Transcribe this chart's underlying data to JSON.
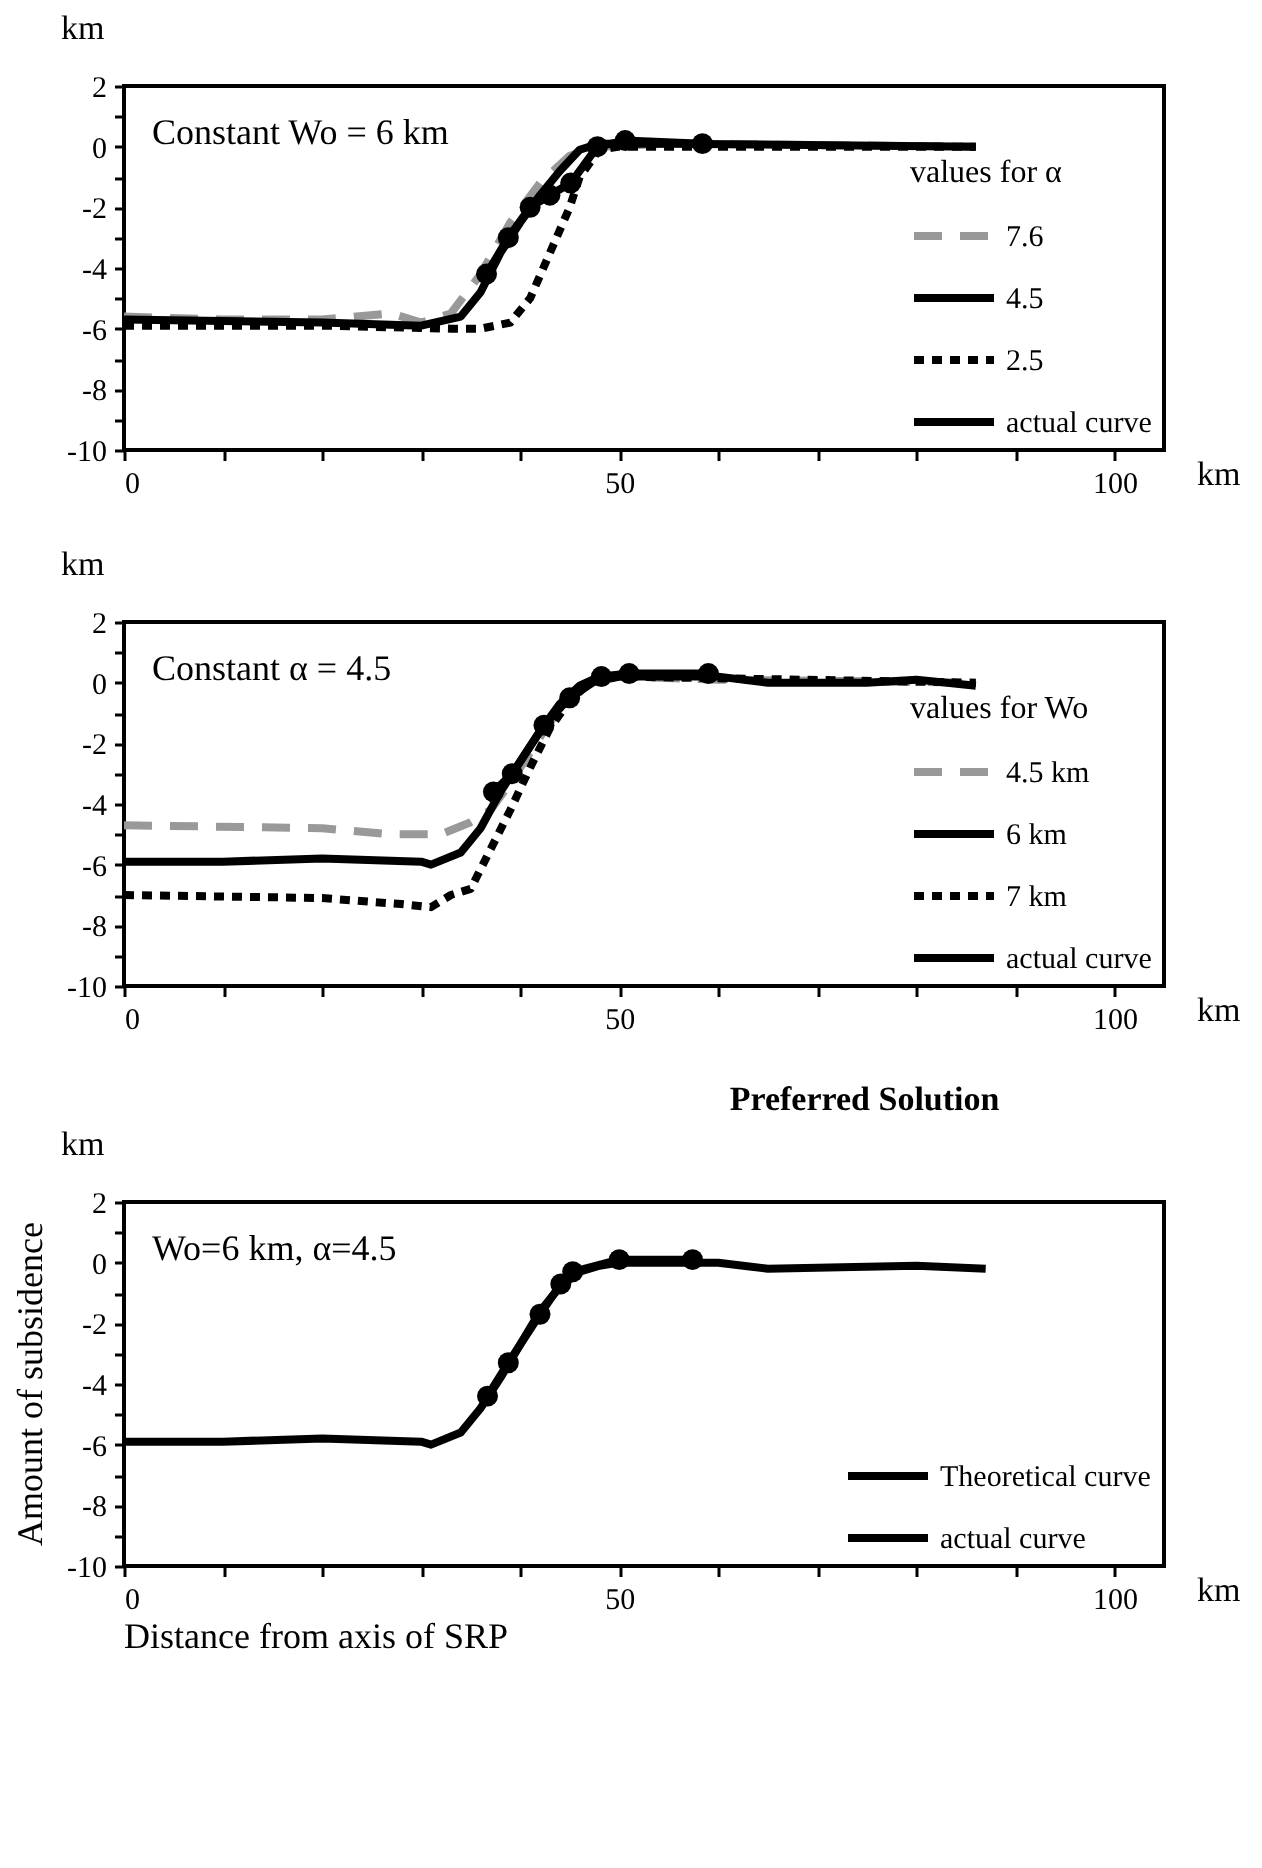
{
  "chart_data": [
    {
      "type": "line",
      "xlabel": "km",
      "ylabel": "km",
      "legend_title": "values for α",
      "legend": "bottom right",
      "grid": false,
      "annotations": [
        "Constant Wo = 6 km"
      ],
      "xlim": [
        0,
        105
      ],
      "xticks": [
        0,
        {
          "value": 10,
          "label": null
        },
        {
          "value": 20,
          "label": null
        },
        {
          "value": 30,
          "label": null
        },
        {
          "value": 40,
          "label": null
        },
        50,
        {
          "value": 60,
          "label": null
        },
        {
          "value": 70,
          "label": null
        },
        {
          "value": 80,
          "label": null
        },
        {
          "value": 90,
          "label": null
        },
        100
      ],
      "ylim": [
        -10,
        2
      ],
      "yticks": [
        -10,
        {
          "value": -9,
          "label": null
        },
        -8,
        {
          "value": -7,
          "label": null
        },
        -6,
        {
          "value": -5,
          "label": null
        },
        -4,
        {
          "value": -3,
          "label": null
        },
        -2,
        {
          "value": -1,
          "label": null
        },
        0,
        {
          "value": 1,
          "label": null
        },
        2
      ],
      "series": [
        {
          "name": "7.6",
          "color": "#999999",
          "line_style": "dashed",
          "marker": "none",
          "x": [
            0,
            10,
            20,
            27,
            30,
            33,
            36,
            39,
            42,
            45,
            48,
            55,
            86
          ],
          "values": [
            -5.6,
            -5.7,
            -5.7,
            -5.5,
            -5.8,
            -5.5,
            -4.2,
            -2.5,
            -1.2,
            -0.3,
            0,
            0.1,
            0
          ]
        },
        {
          "name": "4.5",
          "color": "#000000",
          "line_style": "solid",
          "marker": "none",
          "x": [
            0,
            20,
            30,
            34,
            36,
            38,
            40,
            42,
            44,
            46,
            48,
            55,
            86
          ],
          "values": [
            -5.7,
            -5.8,
            -5.9,
            -5.6,
            -4.8,
            -3.5,
            -2.5,
            -1.6,
            -0.8,
            -0.1,
            0.1,
            0.1,
            0
          ]
        },
        {
          "name": "2.5",
          "color": "#000000",
          "line_style": "dotted",
          "marker": "none",
          "x": [
            0,
            20,
            33,
            36,
            39,
            41,
            43,
            45,
            46,
            48,
            50,
            86
          ],
          "values": [
            -5.9,
            -5.9,
            -6,
            -6,
            -5.8,
            -5,
            -3.5,
            -2,
            -1,
            -0.1,
            0,
            0
          ]
        },
        {
          "name": "actual curve",
          "color": "#000000",
          "line_style": "solid",
          "marker": "circle",
          "x": [
            36.6,
            38.8,
            41,
            43,
            45.1,
            47.8,
            50.6,
            58.4
          ],
          "values": [
            -4.2,
            -3,
            -2,
            -1.6,
            -1.2,
            0,
            0.2,
            0.1
          ]
        }
      ]
    },
    {
      "type": "line",
      "xlabel": "km",
      "ylabel": "km",
      "legend_title": "values for Wo",
      "legend": "bottom right",
      "grid": false,
      "annotations": [
        "Constant α = 4.5"
      ],
      "xlim": [
        0,
        105
      ],
      "xticks": [
        0,
        {
          "value": 10,
          "label": null
        },
        {
          "value": 20,
          "label": null
        },
        {
          "value": 30,
          "label": null
        },
        {
          "value": 40,
          "label": null
        },
        50,
        {
          "value": 60,
          "label": null
        },
        {
          "value": 70,
          "label": null
        },
        {
          "value": 80,
          "label": null
        },
        {
          "value": 90,
          "label": null
        },
        100
      ],
      "ylim": [
        -10,
        2
      ],
      "yticks": [
        -10,
        {
          "value": -9,
          "label": null
        },
        -8,
        {
          "value": -7,
          "label": null
        },
        -6,
        {
          "value": -5,
          "label": null
        },
        -4,
        {
          "value": -3,
          "label": null
        },
        -2,
        {
          "value": -1,
          "label": null
        },
        0,
        {
          "value": 1,
          "label": null
        },
        2
      ],
      "series": [
        {
          "name": "4.5 km",
          "color": "#999999",
          "line_style": "dashed",
          "marker": "none",
          "x": [
            0,
            20,
            27,
            32,
            35,
            37,
            39,
            41,
            43,
            45,
            47,
            50,
            60,
            86
          ],
          "values": [
            -4.7,
            -4.8,
            -5,
            -5,
            -4.6,
            -4.2,
            -3.3,
            -2.3,
            -1.3,
            -0.5,
            0,
            0.2,
            0.1,
            0
          ]
        },
        {
          "name": "6 km",
          "color": "#000000",
          "line_style": "solid",
          "marker": "none",
          "x": [
            0,
            10,
            20,
            30,
            31,
            34,
            36,
            38,
            40,
            42,
            44,
            46,
            48,
            55,
            60,
            65,
            75,
            80,
            86
          ],
          "values": [
            -5.9,
            -5.9,
            -5.8,
            -5.9,
            -6,
            -5.6,
            -4.8,
            -3.6,
            -2.6,
            -1.6,
            -0.7,
            -0.1,
            0.2,
            0.2,
            0.2,
            0,
            0,
            0.1,
            -0.1
          ]
        },
        {
          "name": "7 km",
          "color": "#000000",
          "line_style": "dotted",
          "marker": "none",
          "x": [
            0,
            20,
            28,
            31,
            33,
            35,
            37,
            39,
            41,
            43,
            45,
            47,
            50,
            86
          ],
          "values": [
            -7,
            -7.1,
            -7.3,
            -7.4,
            -7,
            -6.8,
            -5.5,
            -4.2,
            -2.8,
            -1.5,
            -0.6,
            0,
            0.2,
            0
          ]
        },
        {
          "name": "actual curve",
          "color": "#000000",
          "line_style": "solid",
          "marker": "circle",
          "x": [
            37.3,
            39.2,
            42.4,
            45,
            48.2,
            51,
            59
          ],
          "values": [
            -3.6,
            -3,
            -1.4,
            -0.5,
            0.2,
            0.3,
            0.3
          ]
        }
      ]
    },
    {
      "type": "line",
      "title": "Preferred Solution",
      "xlabel": "km",
      "ylabel": "km",
      "legend": "bottom right",
      "grid": false,
      "annotations": [
        "Wo=6 km, α=4.5",
        "Amount of subsidence",
        "Distance from axis of SRP"
      ],
      "xlim": [
        0,
        105
      ],
      "xticks": [
        0,
        {
          "value": 10,
          "label": null
        },
        {
          "value": 20,
          "label": null
        },
        {
          "value": 30,
          "label": null
        },
        {
          "value": 40,
          "label": null
        },
        50,
        {
          "value": 60,
          "label": null
        },
        {
          "value": 70,
          "label": null
        },
        {
          "value": 80,
          "label": null
        },
        {
          "value": 90,
          "label": null
        },
        100
      ],
      "ylim": [
        -10,
        2
      ],
      "yticks": [
        -10,
        {
          "value": -9,
          "label": null
        },
        -8,
        {
          "value": -7,
          "label": null
        },
        -6,
        {
          "value": -5,
          "label": null
        },
        -4,
        {
          "value": -3,
          "label": null
        },
        -2,
        {
          "value": -1,
          "label": null
        },
        0,
        {
          "value": 1,
          "label": null
        },
        2
      ],
      "series": [
        {
          "name": "Theoretical curve",
          "color": "#000000",
          "line_style": "solid",
          "marker": "none",
          "x": [
            0,
            10,
            20,
            30,
            31,
            34,
            36,
            38,
            40,
            42,
            44,
            46,
            48,
            50,
            60,
            65,
            80,
            87
          ],
          "values": [
            -5.9,
            -5.9,
            -5.8,
            -5.9,
            -6,
            -5.6,
            -4.8,
            -3.8,
            -2.7,
            -1.6,
            -0.8,
            -0.3,
            -0.1,
            0,
            0,
            -0.2,
            -0.1,
            -0.2
          ]
        },
        {
          "name": "actual curve",
          "color": "#000000",
          "line_style": "solid",
          "marker": "circle",
          "x": [
            36.7,
            38.8,
            42,
            44.1,
            45.3,
            50,
            57.4
          ],
          "values": [
            -4.4,
            -3.3,
            -1.7,
            -0.7,
            -0.3,
            0.1,
            0.1
          ]
        }
      ]
    }
  ]
}
